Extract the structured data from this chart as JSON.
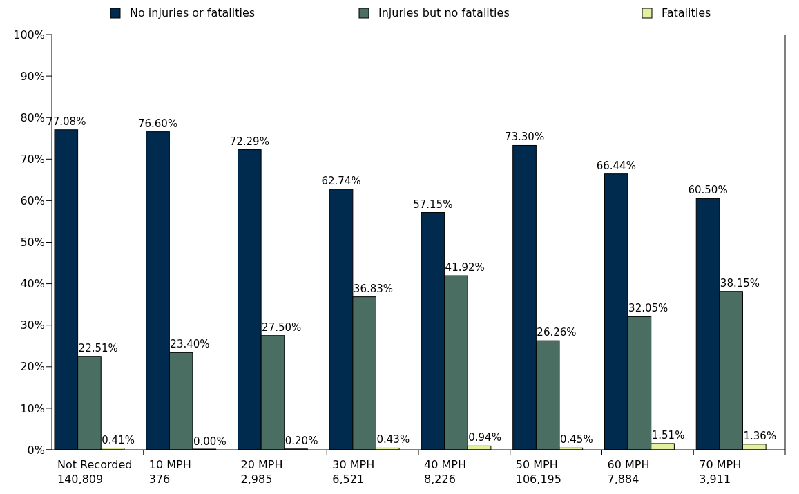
{
  "chart_data": {
    "type": "bar",
    "categories": [
      "Not Recorded\n140,809",
      "10 MPH\n376",
      "20 MPH\n2,985",
      "30 MPH\n6,521",
      "40 MPH\n8,226",
      "50 MPH\n106,195",
      "60 MPH\n7,884",
      "70 MPH\n3,911"
    ],
    "series": [
      {
        "name": "No injuries or fatalities",
        "color": "#002b4f",
        "values": [
          77.08,
          76.6,
          72.29,
          62.74,
          57.15,
          73.3,
          66.44,
          60.5
        ],
        "value_labels": [
          "77.08%",
          "76.60%",
          "72.29%",
          "62.74%",
          "57.15%",
          "73.30%",
          "66.44%",
          "60.50%"
        ]
      },
      {
        "name": "Injuries but no fatalities",
        "color": "#4b6e63",
        "values": [
          22.51,
          23.4,
          27.5,
          36.83,
          41.92,
          26.26,
          32.05,
          38.15
        ],
        "value_labels": [
          "22.51%",
          "23.40%",
          "27.50%",
          "36.83%",
          "41.92%",
          "26.26%",
          "32.05%",
          "38.15%"
        ]
      },
      {
        "name": "Fatalities",
        "color": "#e2f0a2",
        "values": [
          0.41,
          0,
          0.2,
          0.43,
          0.94,
          0.45,
          1.51,
          1.36
        ],
        "value_labels": [
          "0.41%",
          "0.00%",
          "0.20%",
          "0.43%",
          "0.94%",
          "0.45%",
          "1.51%",
          "1.36%"
        ]
      }
    ],
    "ylim": [
      0,
      100
    ],
    "yticks": [
      {
        "value": 0,
        "label": "0%"
      },
      {
        "value": 10,
        "label": "10%"
      },
      {
        "value": 20,
        "label": "20%"
      },
      {
        "value": 30,
        "label": "30%"
      },
      {
        "value": 40,
        "label": "40%"
      },
      {
        "value": 50,
        "label": "50%"
      },
      {
        "value": 60,
        "label": "60%"
      },
      {
        "value": 70,
        "label": "70%"
      },
      {
        "value": 80,
        "label": "80%"
      },
      {
        "value": 90,
        "label": "90%"
      },
      {
        "value": 100,
        "label": "100%"
      }
    ],
    "legend": "top"
  }
}
